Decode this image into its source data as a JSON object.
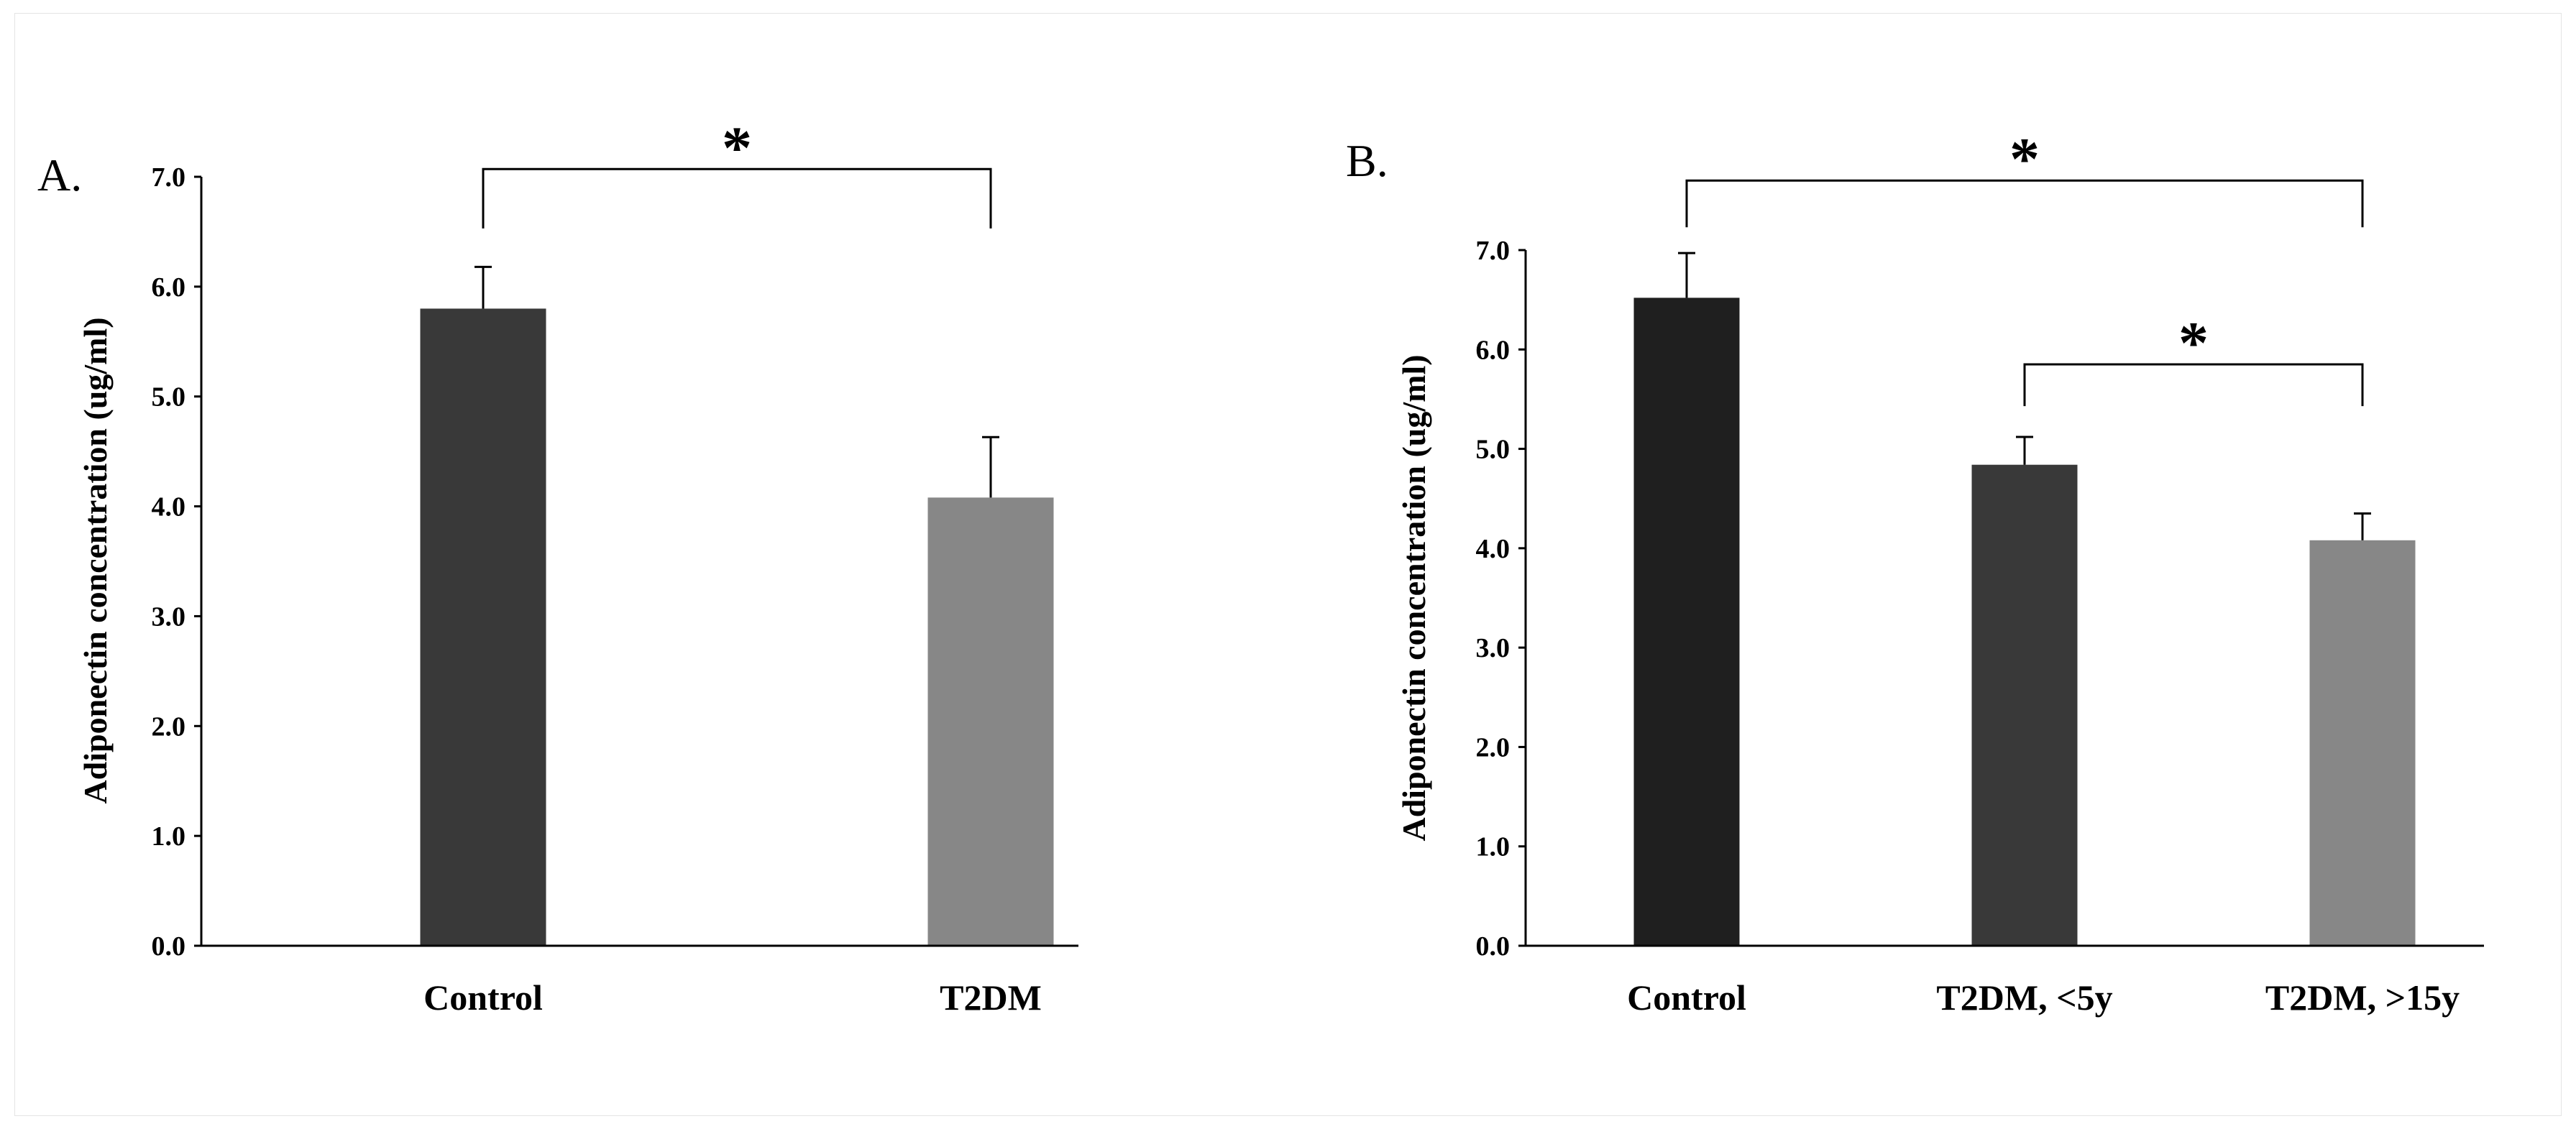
{
  "figure": {
    "panels_note": "two-panel bar chart figure"
  },
  "colors": {
    "axis": "#000000",
    "bar_black": "#1f1f1f",
    "bar_dark": "#393939",
    "bar_gray": "#878787",
    "error": "#000000"
  },
  "chart_data": [
    {
      "type": "bar",
      "panel_label": "A.",
      "title": "",
      "xlabel": "",
      "ylabel": "Adiponectin concentration (ug/ml)",
      "ylim": [
        0,
        7
      ],
      "yticks": [
        "0.0",
        "1.0",
        "2.0",
        "3.0",
        "4.0",
        "5.0",
        "6.0",
        "7.0"
      ],
      "categories": [
        "Control",
        "T2DM"
      ],
      "values": [
        5.8,
        4.08
      ],
      "errors": [
        0.38,
        0.55
      ],
      "bar_colors": [
        "#393939",
        "#878787"
      ],
      "grid": false,
      "significance": [
        {
          "from": 0,
          "to": 1,
          "label": "*",
          "level": 7.07,
          "drop_from": 6.53,
          "drop_to": 6.53
        }
      ]
    },
    {
      "type": "bar",
      "panel_label": "B.",
      "title": "",
      "xlabel": "",
      "ylabel": "Adiponectin concentration (ug/ml)",
      "ylim": [
        0,
        7
      ],
      "yticks": [
        "0.0",
        "1.0",
        "2.0",
        "3.0",
        "4.0",
        "5.0",
        "6.0",
        "7.0"
      ],
      "categories": [
        "Control",
        "T2DM, <5y",
        "T2DM, >15y"
      ],
      "values": [
        6.52,
        4.84,
        4.08
      ],
      "errors": [
        0.45,
        0.28,
        0.27
      ],
      "bar_colors": [
        "#1f1f1f",
        "#393939",
        "#878787"
      ],
      "grid": false,
      "significance": [
        {
          "from": 0,
          "to": 2,
          "label": "*",
          "level": 7.7,
          "drop_from": 7.23,
          "drop_to": 7.23
        },
        {
          "from": 1,
          "to": 2,
          "label": "*",
          "level": 5.85,
          "drop_from": 5.43,
          "drop_to": 5.43
        }
      ]
    }
  ]
}
